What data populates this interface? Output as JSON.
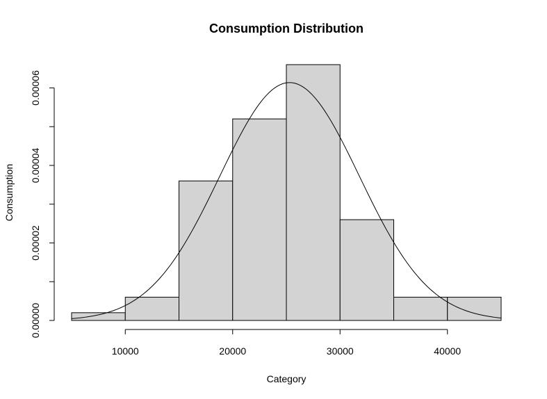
{
  "chart_data": {
    "type": "bar",
    "title": "Consumption Distribution",
    "xlabel": "Category",
    "ylabel": "Consumption",
    "bins": [
      {
        "start": 5000,
        "end": 10000,
        "value": 2e-06
      },
      {
        "start": 10000,
        "end": 15000,
        "value": 6e-06
      },
      {
        "start": 15000,
        "end": 20000,
        "value": 3.6e-05
      },
      {
        "start": 20000,
        "end": 25000,
        "value": 5.2e-05
      },
      {
        "start": 25000,
        "end": 30000,
        "value": 6.6e-05
      },
      {
        "start": 30000,
        "end": 35000,
        "value": 2.6e-05
      },
      {
        "start": 35000,
        "end": 40000,
        "value": 6e-06
      },
      {
        "start": 40000,
        "end": 45000,
        "value": 6e-06
      }
    ],
    "density_curve": {
      "mean": 25300,
      "sd": 6500
    },
    "xlim": [
      5000,
      45000
    ],
    "ylim": [
      0,
      6.6e-05
    ],
    "xticks": [
      10000,
      20000,
      30000,
      40000
    ],
    "xtick_labels": [
      "10000",
      "20000",
      "30000",
      "40000"
    ],
    "yticks": [
      0,
      1e-05,
      2e-05,
      3e-05,
      4e-05,
      5e-05,
      6e-05
    ],
    "ytick_labels": [
      "0.00000",
      "",
      "0.00002",
      "",
      "0.00004",
      "",
      "0.00006"
    ],
    "grid": false
  }
}
